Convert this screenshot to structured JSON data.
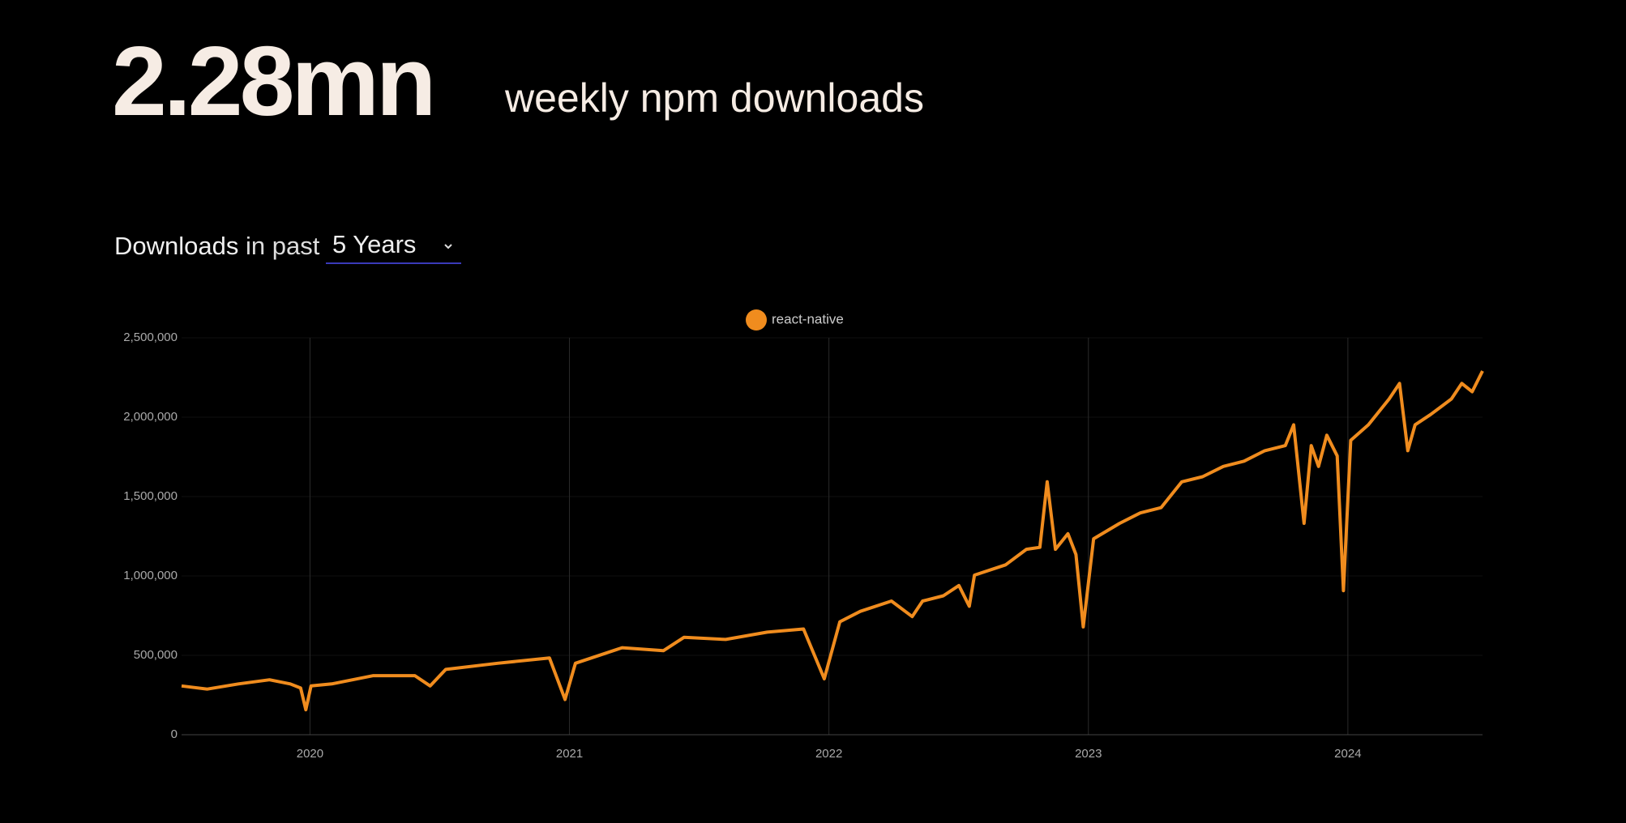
{
  "header": {
    "headline": "2.28mn",
    "subheadline": "weekly npm downloads"
  },
  "controls": {
    "label_strong": "Downloads",
    "label_rest": "in past",
    "period": "5 Years"
  },
  "chart_data": {
    "type": "line",
    "x": [
      2019.505,
      2019.604,
      2019.724,
      2019.844,
      2019.924,
      2019.964,
      2019.984,
      2020.004,
      2020.084,
      2020.244,
      2020.404,
      2020.463,
      2020.523,
      2020.723,
      2020.923,
      2020.983,
      2021.023,
      2021.203,
      2021.362,
      2021.442,
      2021.602,
      2021.762,
      2021.902,
      2021.982,
      2022.042,
      2022.121,
      2022.241,
      2022.321,
      2022.361,
      2022.441,
      2022.501,
      2022.541,
      2022.561,
      2022.681,
      2022.761,
      2022.813,
      2022.841,
      2022.873,
      2022.921,
      2022.952,
      2022.98,
      2023.02,
      2023.12,
      2023.2,
      2023.28,
      2023.36,
      2023.44,
      2023.52,
      2023.6,
      2023.68,
      2023.759,
      2023.791,
      2023.831,
      2023.859,
      2023.887,
      2023.919,
      2023.959,
      2023.983,
      2024.011,
      2024.079,
      2024.159,
      2024.199,
      2024.231,
      2024.259,
      2024.319,
      2024.399,
      2024.439,
      2024.479,
      2024.519
    ],
    "series": [
      {
        "name": "react-native",
        "color": "#f08c1e",
        "values": [
          307000,
          287000,
          320000,
          346000,
          320000,
          294000,
          157000,
          307000,
          320000,
          372000,
          372000,
          307000,
          411000,
          450000,
          483000,
          222000,
          450000,
          548000,
          529000,
          614000,
          600000,
          646000,
          666000,
          352000,
          711000,
          777000,
          842000,
          744000,
          842000,
          875000,
          940000,
          809000,
          1005000,
          1070000,
          1168000,
          1180000,
          1593000,
          1168000,
          1266000,
          1135000,
          679000,
          1234000,
          1331000,
          1397000,
          1430000,
          1593000,
          1625000,
          1690000,
          1723000,
          1789000,
          1821000,
          1952000,
          1331000,
          1821000,
          1690000,
          1886000,
          1756000,
          907000,
          1854000,
          1952000,
          2115000,
          2213000,
          1789000,
          1952000,
          2017000,
          2115000,
          2213000,
          2160000,
          2291000
        ]
      }
    ],
    "xlim": [
      2019.505,
      2024.519
    ],
    "xticks": [
      2020,
      2021,
      2022,
      2023,
      2024
    ],
    "ylim": [
      0,
      2500000
    ],
    "yticks": [
      0,
      {
        "value": 500000,
        "label": "500,000"
      },
      {
        "value": 1000000,
        "label": "1,000,000"
      },
      {
        "value": 1500000,
        "label": "1,500,000"
      },
      {
        "value": 2000000,
        "label": "2,000,000"
      },
      {
        "value": 2500000,
        "label": "2,500,000"
      }
    ],
    "grid": true
  }
}
